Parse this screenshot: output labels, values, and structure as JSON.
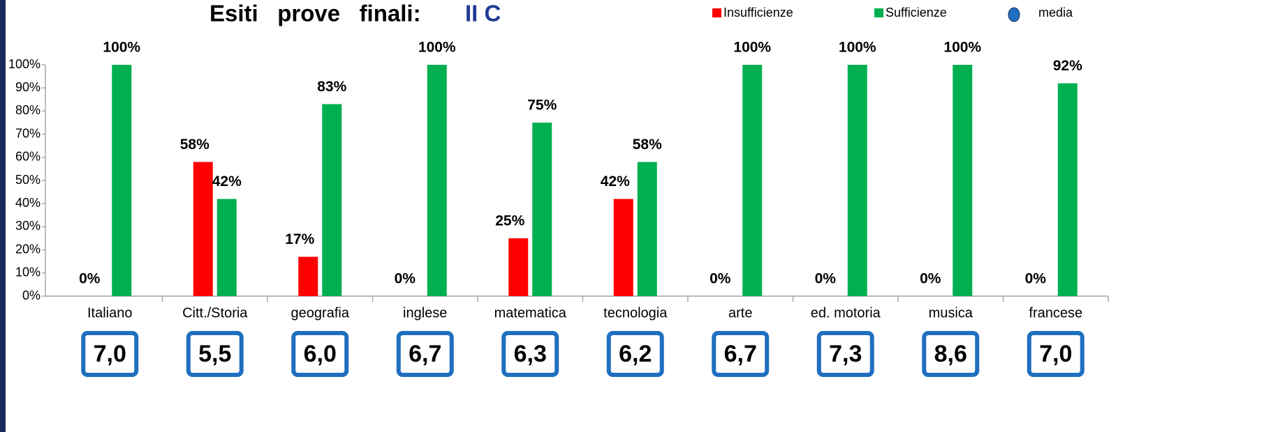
{
  "chart_data": {
    "type": "bar",
    "title": "Esiti   prove   finali:",
    "subtitle": "II C",
    "categories": [
      "Italiano",
      "Citt./Storia",
      "geografia",
      "inglese",
      "matematica",
      "tecnologia",
      "arte",
      "ed. motoria",
      "musica",
      "francese"
    ],
    "series": [
      {
        "name": "Insufficienze",
        "color": "#ff0000",
        "values": [
          0,
          58,
          17,
          0,
          25,
          42,
          0,
          0,
          0,
          0
        ],
        "value_labels": [
          "0%",
          "58%",
          "17%",
          "0%",
          "25%",
          "42%",
          "0%",
          "0%",
          "0%",
          "0%"
        ]
      },
      {
        "name": "Sufficienze",
        "color": "#00b050",
        "values": [
          100,
          42,
          83,
          100,
          75,
          58,
          100,
          100,
          100,
          92
        ],
        "value_labels": [
          "100%",
          "42%",
          "83%",
          "100%",
          "75%",
          "58%",
          "100%",
          "100%",
          "100%",
          "92%"
        ]
      }
    ],
    "media": {
      "name": "media",
      "color": "#1f6fc0",
      "values": [
        7.0,
        5.5,
        6.0,
        6.7,
        6.3,
        6.2,
        6.7,
        7.3,
        8.6,
        7.0
      ],
      "value_labels": [
        "7,0",
        "5,5",
        "6,0",
        "6,7",
        "6,3",
        "6,2",
        "6,7",
        "7,3",
        "8,6",
        "7,0"
      ]
    },
    "ylim": [
      0,
      100
    ],
    "yticks": [
      {
        "value": 0,
        "label": "0%"
      },
      {
        "value": 10,
        "label": "10%"
      },
      {
        "value": 20,
        "label": "20%"
      },
      {
        "value": 30,
        "label": "30%"
      },
      {
        "value": 40,
        "label": "40%"
      },
      {
        "value": 50,
        "label": "50%"
      },
      {
        "value": 60,
        "label": "60%"
      },
      {
        "value": 70,
        "label": "70%"
      },
      {
        "value": 80,
        "label": "80%"
      },
      {
        "value": 90,
        "label": "90%"
      },
      {
        "value": 100,
        "label": "100%"
      }
    ],
    "grid": false,
    "legend": "top-right"
  }
}
